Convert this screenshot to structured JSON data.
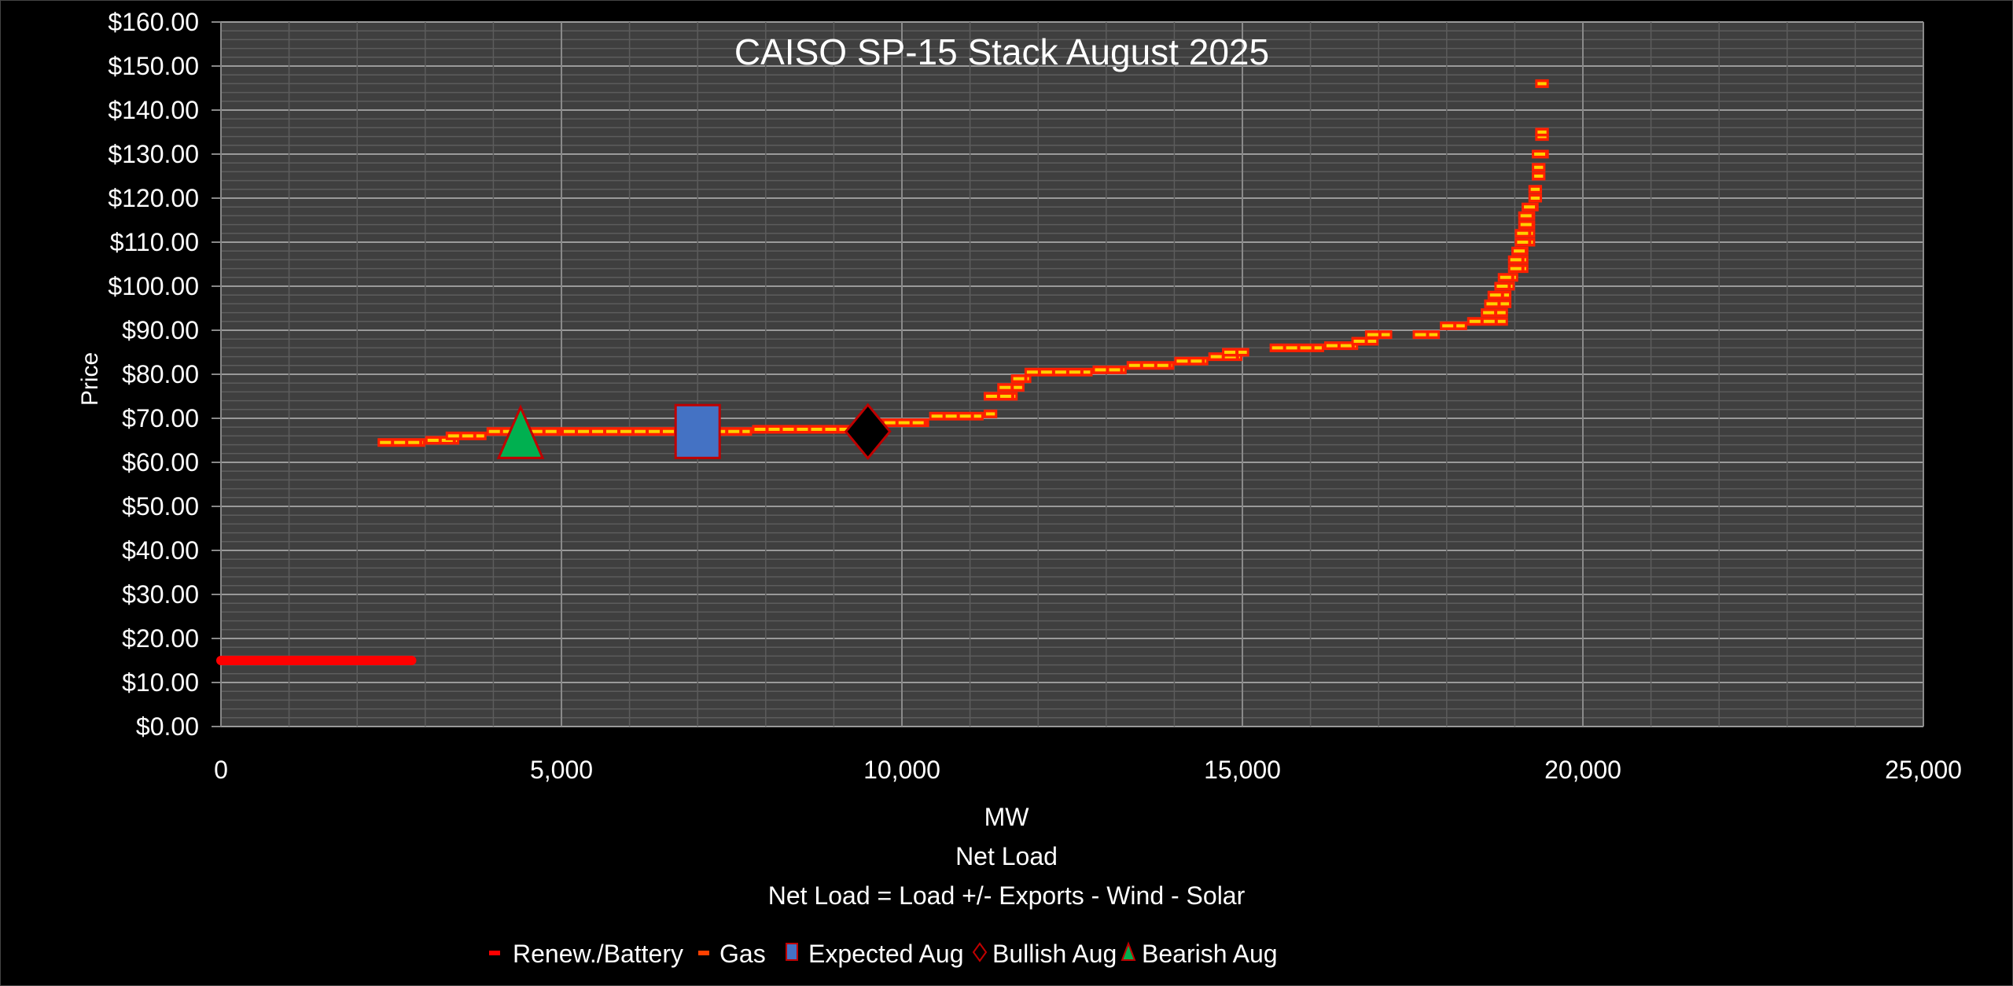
{
  "chart_data": {
    "type": "scatter",
    "title": "CAISO SP-15 Stack August 2025",
    "ylabel": "Price",
    "xlabel_lines": [
      "MW",
      "Net Load",
      "Net Load = Load +/- Exports - Wind - Solar"
    ],
    "xlim": [
      0,
      25000
    ],
    "ylim": [
      0,
      160
    ],
    "x_ticks": [
      "0",
      "5,000",
      "10,000",
      "15,000",
      "20,000",
      "25,000"
    ],
    "x_tick_values": [
      0,
      5000,
      10000,
      15000,
      20000,
      25000
    ],
    "y_ticks": [
      "$0.00",
      "$10.00",
      "$20.00",
      "$30.00",
      "$40.00",
      "$50.00",
      "$60.00",
      "$70.00",
      "$80.00",
      "$90.00",
      "$100.00",
      "$110.00",
      "$120.00",
      "$130.00",
      "$140.00",
      "$150.00",
      "$160.00"
    ],
    "y_tick_values": [
      0,
      10,
      20,
      30,
      40,
      50,
      60,
      70,
      80,
      90,
      100,
      110,
      120,
      130,
      140,
      150,
      160
    ],
    "grid": true,
    "legend_position": "bottom",
    "series": [
      {
        "name": "Renew./Battery",
        "color": "#ff0000",
        "segments": [
          [
            0,
            2800,
            15
          ]
        ]
      },
      {
        "name": "Gas",
        "color": "#ff2000",
        "inner_color": "#ffd000",
        "segments": [
          [
            2300,
            3000,
            64.5
          ],
          [
            3000,
            3500,
            65
          ],
          [
            3300,
            3900,
            66
          ],
          [
            3900,
            5000,
            67
          ],
          [
            5000,
            7000,
            67
          ],
          [
            7000,
            7800,
            67
          ],
          [
            7800,
            9500,
            67.5
          ],
          [
            9500,
            10400,
            69
          ],
          [
            10400,
            11200,
            70.5
          ],
          [
            11200,
            11400,
            71
          ],
          [
            11200,
            11700,
            75
          ],
          [
            11400,
            11800,
            77
          ],
          [
            11600,
            11900,
            79
          ],
          [
            11800,
            12800,
            80.5
          ],
          [
            12800,
            13300,
            81
          ],
          [
            13300,
            14000,
            82
          ],
          [
            14000,
            14500,
            83
          ],
          [
            14500,
            15000,
            84
          ],
          [
            14700,
            15100,
            85
          ],
          [
            15400,
            16200,
            86
          ],
          [
            16200,
            16700,
            86.5
          ],
          [
            16600,
            17000,
            87.5
          ],
          [
            16800,
            17200,
            89
          ],
          [
            17500,
            17900,
            89
          ],
          [
            17900,
            18300,
            91
          ],
          [
            18300,
            18900,
            92
          ],
          [
            18500,
            18900,
            94
          ],
          [
            18550,
            18950,
            96
          ],
          [
            18600,
            18950,
            98
          ],
          [
            18700,
            19000,
            100
          ],
          [
            18750,
            19050,
            102
          ],
          [
            18900,
            19200,
            104
          ],
          [
            18900,
            19200,
            106
          ],
          [
            18950,
            19200,
            108
          ],
          [
            19000,
            19300,
            110
          ],
          [
            19000,
            19300,
            112
          ],
          [
            19050,
            19300,
            114
          ],
          [
            19050,
            19300,
            116
          ],
          [
            19100,
            19350,
            118
          ],
          [
            19200,
            19400,
            120
          ],
          [
            19200,
            19400,
            122
          ],
          [
            19250,
            19450,
            125
          ],
          [
            19250,
            19450,
            127
          ],
          [
            19250,
            19500,
            130
          ],
          [
            19300,
            19500,
            134
          ],
          [
            19300,
            19500,
            135
          ],
          [
            19300,
            19500,
            146
          ]
        ]
      },
      {
        "name": "Expected Aug",
        "marker": "square",
        "color": "#4472c4",
        "edge": "#c00000",
        "points": [
          [
            7000,
            67
          ]
        ]
      },
      {
        "name": "Bullish Aug",
        "marker": "diamond",
        "color": "#000000",
        "edge": "#c00000",
        "points": [
          [
            9500,
            67
          ]
        ]
      },
      {
        "name": "Bearish Aug",
        "marker": "triangle",
        "color": "#00b050",
        "edge": "#c00000",
        "points": [
          [
            4400,
            66
          ]
        ]
      }
    ]
  }
}
